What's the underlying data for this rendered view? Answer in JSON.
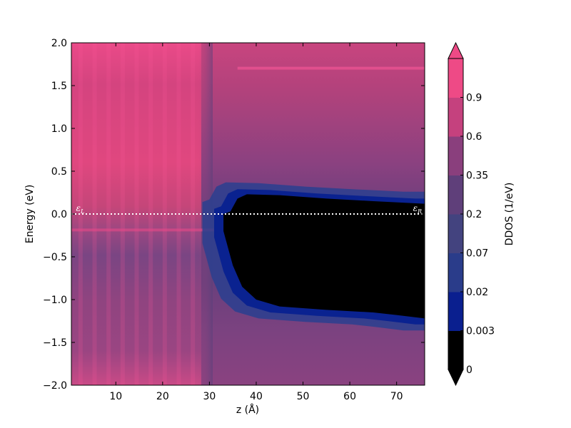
{
  "chart_data": {
    "type": "heatmap",
    "title": "",
    "xlabel": "z (Å)",
    "ylabel": "Energy (eV)",
    "xlim": [
      0.5,
      76
    ],
    "ylim": [
      -2.0,
      2.0
    ],
    "xticks": [
      10,
      20,
      30,
      40,
      50,
      60,
      70
    ],
    "xtick_labels": [
      "10",
      "20",
      "30",
      "40",
      "50",
      "60",
      "70"
    ],
    "yticks": [
      2.0,
      1.5,
      1.0,
      0.5,
      0.0,
      -0.5,
      -1.0,
      -1.5,
      -2.0
    ],
    "ytick_labels": [
      "2.0",
      "1.5",
      "1.0",
      "0.5",
      "0.0",
      "−0.5",
      "−1.0",
      "−1.5",
      "−2.0"
    ],
    "fermi_line_energy": 0.0,
    "annotations": [
      {
        "text": "ε",
        "sub": "L",
        "x": 1.5,
        "y": 0.0
      },
      {
        "text": "ε",
        "sub": "R",
        "x": 73.5,
        "y": 0.0
      }
    ],
    "regions": {
      "left_lead_z_max": 28,
      "transition_z": [
        28,
        34
      ],
      "gap_top_curve": [
        [
          33,
          0.0
        ],
        [
          34.5,
          0.03
        ],
        [
          36,
          0.18
        ],
        [
          38,
          0.23
        ],
        [
          45,
          0.22
        ],
        [
          55,
          0.18
        ],
        [
          65,
          0.15
        ],
        [
          76,
          0.12
        ]
      ],
      "gap_bottom_curve": [
        [
          33,
          -0.2
        ],
        [
          35,
          -0.6
        ],
        [
          37,
          -0.85
        ],
        [
          40,
          -1.0
        ],
        [
          45,
          -1.08
        ],
        [
          55,
          -1.12
        ],
        [
          65,
          -1.15
        ],
        [
          70,
          -1.18
        ],
        [
          76,
          -1.22
        ]
      ]
    },
    "colorbar": {
      "label": "DDOS (1/eV)",
      "levels": [
        0,
        0.003,
        0.02,
        0.07,
        0.2,
        0.35,
        0.6,
        0.9
      ],
      "tick_labels": [
        "0",
        "0.003",
        "0.02",
        "0.07",
        "0.2",
        "0.35",
        "0.6",
        "0.9"
      ],
      "extend": "both",
      "colors": [
        "#000000",
        "#0a1f8f",
        "#2a3c8a",
        "#43437f",
        "#5f3f7a",
        "#8a3f7d",
        "#c5417e",
        "#ee4a86"
      ]
    },
    "grid": false
  }
}
